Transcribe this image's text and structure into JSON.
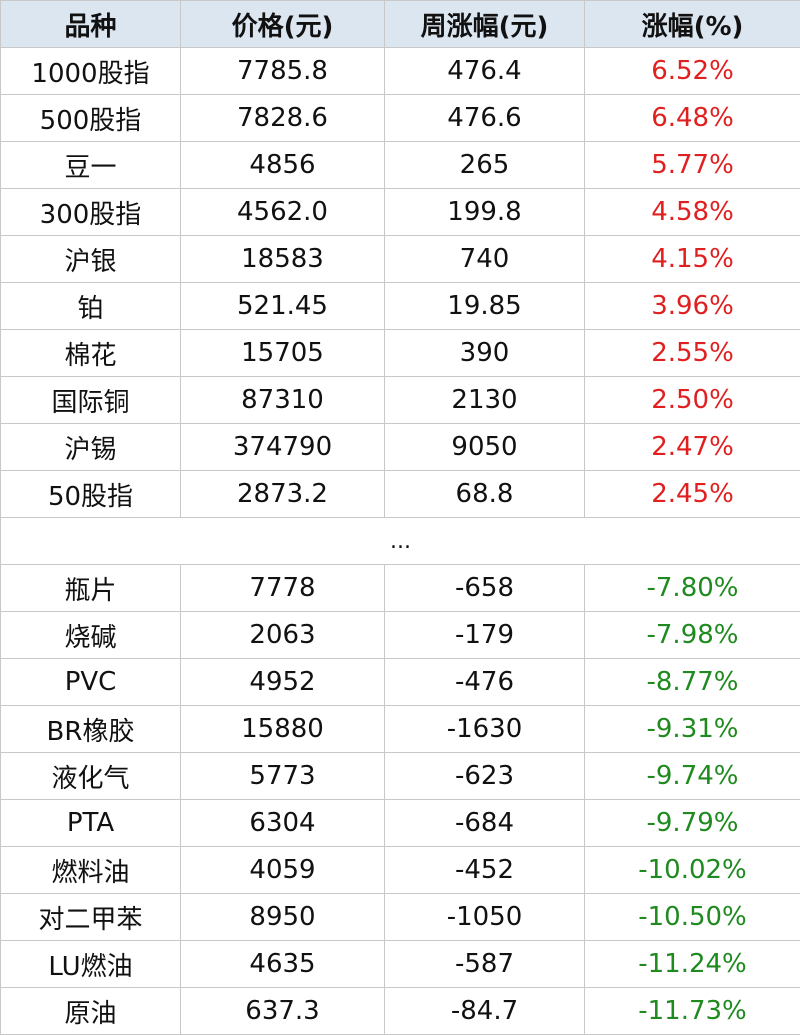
{
  "headers": [
    "品种",
    "价格(元)",
    "周涨幅(元)",
    "涨幅(%)"
  ],
  "gainers": [
    [
      "1000股指",
      "7785.8",
      "476.4",
      "6.52%"
    ],
    [
      "500股指",
      "7828.6",
      "476.6",
      "6.48%"
    ],
    [
      "豆一",
      "4856",
      "265",
      "5.77%"
    ],
    [
      "300股指",
      "4562.0",
      "199.8",
      "4.58%"
    ],
    [
      "沪银",
      "18583",
      "740",
      "4.15%"
    ],
    [
      "铂",
      "521.45",
      "19.85",
      "3.96%"
    ],
    [
      "棉花",
      "15705",
      "390",
      "2.55%"
    ],
    [
      "国际铜",
      "87310",
      "2130",
      "2.50%"
    ],
    [
      "沪锡",
      "374790",
      "9050",
      "2.47%"
    ],
    [
      "50股指",
      "2873.2",
      "68.8",
      "2.45%"
    ]
  ],
  "separator": "...",
  "losers": [
    [
      "瓶片",
      "7778",
      "-658",
      "-7.80%"
    ],
    [
      "烧碱",
      "2063",
      "-179",
      "-7.98%"
    ],
    [
      "PVC",
      "4952",
      "-476",
      "-8.77%"
    ],
    [
      "BR橡胶",
      "15880",
      "-1630",
      "-9.31%"
    ],
    [
      "液化气",
      "5773",
      "-623",
      "-9.74%"
    ],
    [
      "PTA",
      "6304",
      "-684",
      "-9.79%"
    ],
    [
      "燃料油",
      "4059",
      "-452",
      "-10.02%"
    ],
    [
      "对二甲苯",
      "8950",
      "-1050",
      "-10.50%"
    ],
    [
      "LU燃油",
      "4635",
      "-587",
      "-11.24%"
    ],
    [
      "原油",
      "637.3",
      "-84.7",
      "-11.73%"
    ]
  ],
  "colors": {
    "header_bg": "#dce6f1",
    "positive": "#e02020",
    "negative": "#1f8a1f",
    "border": "#c8c8c8"
  }
}
